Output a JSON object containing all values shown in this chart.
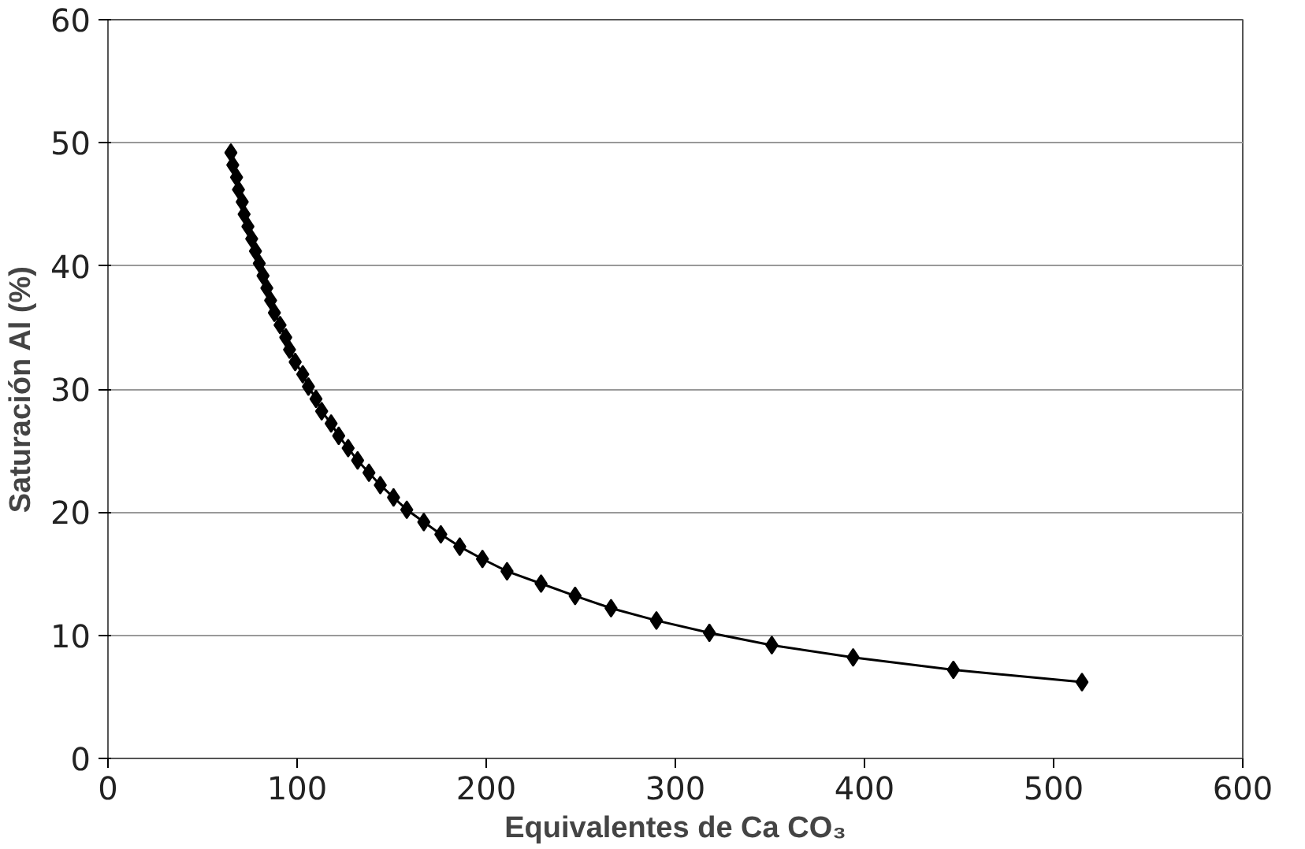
{
  "chart_data": {
    "type": "line",
    "xlabel": "Equivalentes de Ca CO₃",
    "ylabel": "Saturación Al (%)",
    "xlim": [
      0,
      600
    ],
    "xticks": [
      0,
      100,
      200,
      300,
      400,
      500,
      600
    ],
    "ylim": [
      0,
      60
    ],
    "yticks": [
      0,
      10,
      20,
      30,
      40,
      50,
      60
    ],
    "grid": "y",
    "marker": "diamond",
    "line_style": "solid",
    "series": [
      {
        "color": "#000000",
        "x": [
          65,
          66,
          68,
          69,
          71,
          72,
          74,
          76,
          78,
          80,
          82,
          84,
          86,
          88,
          91,
          94,
          96,
          99,
          103,
          106,
          110,
          113,
          118,
          122,
          127,
          132,
          138,
          144,
          151,
          158,
          167,
          176,
          186,
          198,
          211,
          229,
          247,
          266,
          290,
          318,
          351,
          394,
          447,
          515
        ],
        "values": [
          49.2,
          48.2,
          47.2,
          46.2,
          45.2,
          44.2,
          43.2,
          42.2,
          41.2,
          40.2,
          39.2,
          38.2,
          37.2,
          36.2,
          35.2,
          34.2,
          33.2,
          32.2,
          31.2,
          30.2,
          29.2,
          28.2,
          27.2,
          26.2,
          25.2,
          24.2,
          23.2,
          22.2,
          21.2,
          20.2,
          19.2,
          18.2,
          17.2,
          16.2,
          15.2,
          14.2,
          13.2,
          12.2,
          11.2,
          10.2,
          9.2,
          8.2,
          7.2,
          6.2
        ]
      }
    ]
  }
}
